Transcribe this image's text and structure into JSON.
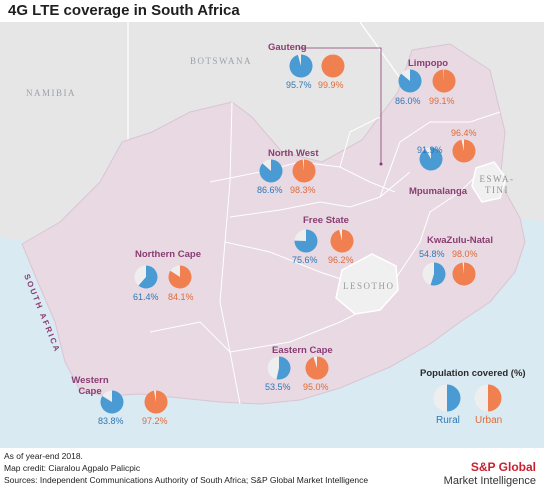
{
  "title": "4G LTE coverage in South Africa",
  "countries": {
    "botswana": "BOTSWANA",
    "namibia": "NAMIBIA",
    "lesotho": "LESOTHO",
    "eswatini": "ESWA-TINI",
    "south_africa": "SOUTH AFRICA"
  },
  "colors": {
    "rural": "#4a9ad4",
    "urban": "#f08050",
    "pie_bg": "#eeeeee",
    "land": "#e8d9e3",
    "neighbor": "#e6e6e6",
    "sea": "#d9eaf2",
    "province_label": "#8a3d72"
  },
  "provinces": [
    {
      "name": "Gauteng",
      "rural": 95.7,
      "urban": 99.9
    },
    {
      "name": "Limpopo",
      "rural": 86.0,
      "urban": 99.1
    },
    {
      "name": "North West",
      "rural": 86.6,
      "urban": 98.3
    },
    {
      "name": "Mpumalanga",
      "rural": 91.9,
      "urban": 96.4
    },
    {
      "name": "Free State",
      "rural": 75.6,
      "urban": 96.2
    },
    {
      "name": "KwaZulu-Natal",
      "rural": 54.8,
      "urban": 98.0
    },
    {
      "name": "Northern Cape",
      "rural": 61.4,
      "urban": 84.1
    },
    {
      "name": "Eastern Cape",
      "rural": 53.5,
      "urban": 95.0
    },
    {
      "name": "Western Cape",
      "rural": 83.8,
      "urban": 97.2
    }
  ],
  "legend": {
    "title": "Population covered (%)",
    "rural_label": "Rural",
    "urban_label": "Urban"
  },
  "footer": {
    "line1": "As of year-end 2018.",
    "line2": "Map credit: Ciaralou Agpalo Palicpic",
    "line3": "Sources: Independent Communications Authority of South Africa; S&P Global Market Intelligence"
  },
  "brand": {
    "name": "S&P Global",
    "sub": "Market Intelligence"
  }
}
